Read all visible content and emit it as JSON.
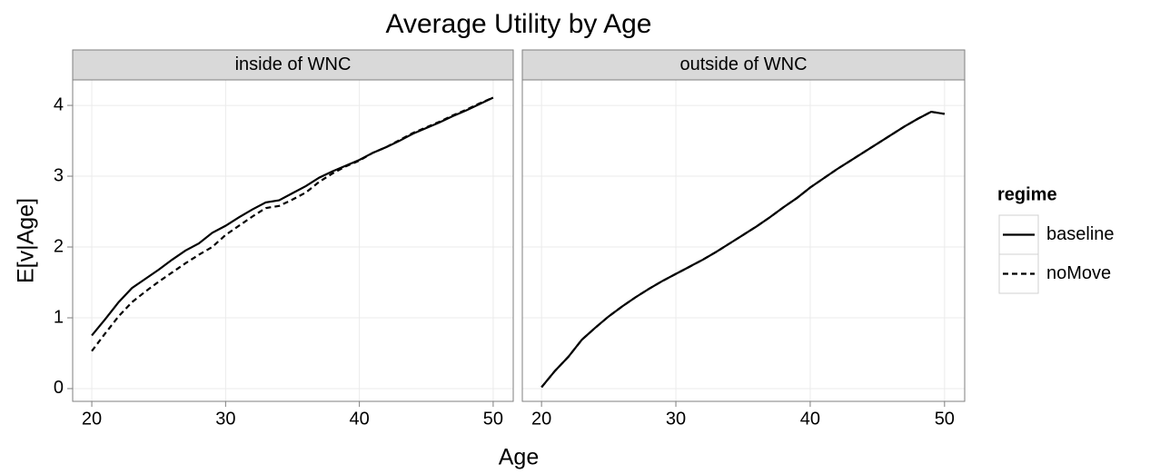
{
  "title": "Average Utility by Age",
  "xlabel": "Age",
  "ylabel": "E[v|Age]",
  "legend_title": "regime",
  "chart_data": [
    {
      "type": "line",
      "facet": "inside of WNC",
      "x": [
        20,
        21,
        22,
        23,
        24,
        25,
        26,
        27,
        28,
        29,
        30,
        31,
        32,
        33,
        34,
        35,
        36,
        37,
        38,
        39,
        40,
        41,
        42,
        43,
        44,
        45,
        46,
        47,
        48,
        49,
        50
      ],
      "series": [
        {
          "name": "baseline",
          "color": "#000000",
          "dash": "solid",
          "values": [
            0.75,
            0.98,
            1.22,
            1.42,
            1.55,
            1.68,
            1.82,
            1.95,
            2.05,
            2.2,
            2.3,
            2.42,
            2.53,
            2.63,
            2.66,
            2.76,
            2.86,
            2.98,
            3.07,
            3.15,
            3.23,
            3.33,
            3.41,
            3.5,
            3.6,
            3.68,
            3.76,
            3.85,
            3.93,
            4.02,
            4.11
          ]
        },
        {
          "name": "noMove",
          "color": "#000000",
          "dash": "dashed",
          "values": [
            0.53,
            0.78,
            1.02,
            1.22,
            1.37,
            1.51,
            1.64,
            1.77,
            1.89,
            2.0,
            2.17,
            2.3,
            2.43,
            2.55,
            2.58,
            2.67,
            2.77,
            2.92,
            3.04,
            3.14,
            3.22,
            3.33,
            3.41,
            3.51,
            3.61,
            3.69,
            3.77,
            3.86,
            3.94,
            4.03,
            4.11
          ]
        }
      ],
      "xlim": [
        18.57,
        51.5
      ],
      "ylim": [
        -0.18,
        4.36
      ],
      "xticks": [
        20,
        30,
        40,
        50
      ],
      "yticks": [
        0,
        1,
        2,
        3,
        4
      ],
      "grid": true
    },
    {
      "type": "line",
      "facet": "outside of WNC",
      "x": [
        20,
        21,
        22,
        23,
        24,
        25,
        26,
        27,
        28,
        29,
        30,
        31,
        32,
        33,
        34,
        35,
        36,
        37,
        38,
        39,
        40,
        41,
        42,
        43,
        44,
        45,
        46,
        47,
        48,
        49,
        50
      ],
      "series": [
        {
          "name": "baseline",
          "color": "#000000",
          "dash": "solid",
          "values": [
            0.02,
            0.25,
            0.45,
            0.69,
            0.86,
            1.02,
            1.16,
            1.29,
            1.41,
            1.52,
            1.62,
            1.72,
            1.82,
            1.93,
            2.05,
            2.17,
            2.29,
            2.42,
            2.56,
            2.69,
            2.84,
            2.97,
            3.1,
            3.22,
            3.34,
            3.46,
            3.58,
            3.7,
            3.81,
            3.91,
            3.88
          ]
        },
        {
          "name": "noMove",
          "color": "#000000",
          "dash": "dashed",
          "values": [
            0.02,
            0.25,
            0.45,
            0.69,
            0.86,
            1.02,
            1.16,
            1.29,
            1.41,
            1.52,
            1.62,
            1.72,
            1.82,
            1.93,
            2.05,
            2.17,
            2.29,
            2.42,
            2.56,
            2.69,
            2.84,
            2.97,
            3.1,
            3.22,
            3.34,
            3.46,
            3.58,
            3.7,
            3.81,
            3.91,
            3.88
          ]
        }
      ],
      "xlim": [
        18.57,
        51.5
      ],
      "ylim": [
        -0.18,
        4.36
      ],
      "xticks": [
        20,
        30,
        40,
        50
      ],
      "yticks": [
        0,
        1,
        2,
        3,
        4
      ],
      "grid": true
    }
  ]
}
